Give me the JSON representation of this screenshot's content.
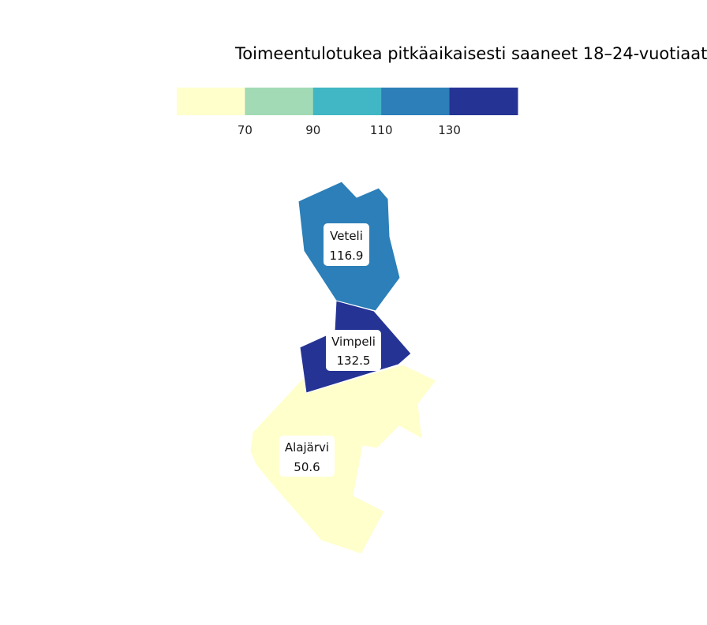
{
  "title": "Toimeentulotukea pitkäaikaisesti saaneet 18–24-vuotiaat",
  "legend": {
    "colors": [
      "#ffffcc",
      "#a1dab4",
      "#41b6c4",
      "#2c7fb8",
      "#253494"
    ],
    "breaks": [
      "70",
      "90",
      "110",
      "130"
    ]
  },
  "regions": [
    {
      "name": "Veteli",
      "value": "116.9",
      "color": "#2c7fb8"
    },
    {
      "name": "Vimpeli",
      "value": "132.5",
      "color": "#253494"
    },
    {
      "name": "Alajärvi",
      "value": "50.6",
      "color": "#ffffcc"
    }
  ]
}
